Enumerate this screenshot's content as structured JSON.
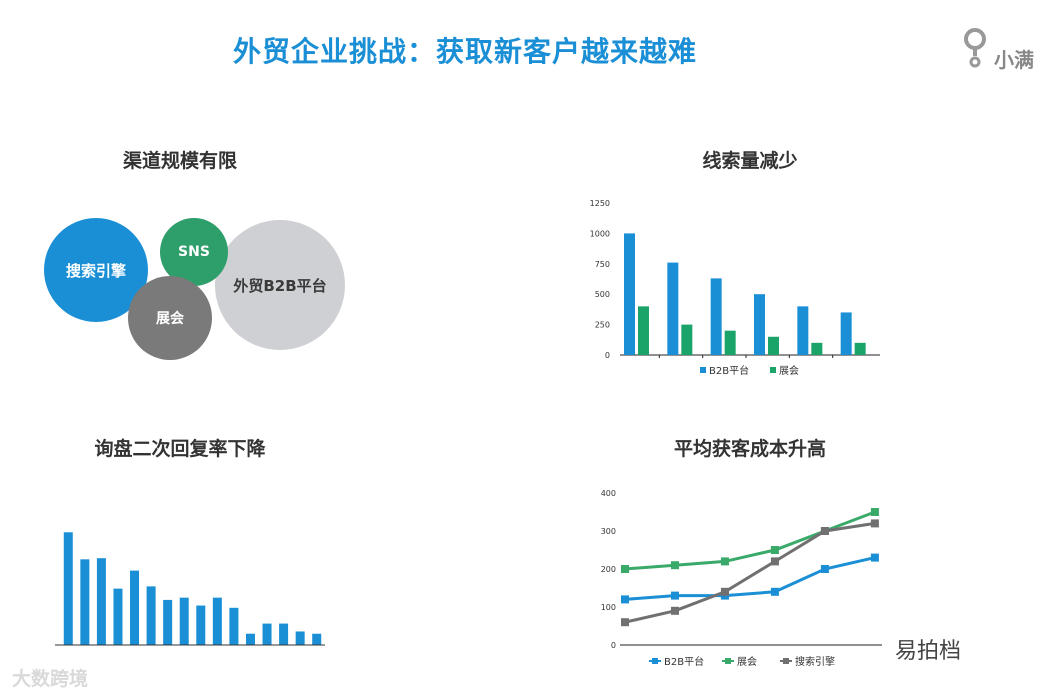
{
  "title": "外贸企业挑战：获取新客户越来越难",
  "logo": {
    "text": "小满"
  },
  "sections": {
    "channel": {
      "title": "渠道规模有限",
      "bubbles": {
        "search": "搜索引擎",
        "sns": "SNS",
        "fair": "展会",
        "b2b": "外贸B2B平台"
      }
    },
    "leads": {
      "title": "线索量减少"
    },
    "reply": {
      "title": "询盘二次回复率下降"
    },
    "cost": {
      "title": "平均获客成本升高"
    }
  },
  "colors": {
    "blue": "#1a8fd6",
    "green": "#2e9e6b",
    "gray": "#7a7a7a",
    "lightgray": "#cfd0d3",
    "bar_blue": "#1a8fd6",
    "bar_green": "#1aa46a"
  },
  "chart_data": [
    {
      "id": "leads",
      "type": "bar",
      "title": "线索量减少",
      "categories": [
        "",
        "",
        "",
        "",
        "",
        ""
      ],
      "series": [
        {
          "name": "B2B平台",
          "color": "#1a8fd6",
          "values": [
            1000,
            760,
            630,
            500,
            400,
            350
          ]
        },
        {
          "name": "展会",
          "color": "#1aa46a",
          "values": [
            400,
            250,
            200,
            150,
            100,
            100
          ]
        }
      ],
      "yticks": [
        0,
        250,
        500,
        750,
        1000,
        1250
      ],
      "ylim": [
        0,
        1250
      ],
      "legend": "bottom"
    },
    {
      "id": "reply",
      "type": "bar",
      "title": "询盘二次回复率下降",
      "series": [
        {
          "name": "",
          "color": "#1a8fd6",
          "values": [
            100,
            76,
            77,
            50,
            66,
            52,
            40,
            42,
            35,
            42,
            33,
            10,
            19,
            19,
            12,
            10
          ]
        }
      ],
      "ylim": [
        0,
        110
      ]
    },
    {
      "id": "cost",
      "type": "line",
      "title": "平均获客成本升高",
      "x": [
        1,
        2,
        3,
        4,
        5,
        6
      ],
      "series": [
        {
          "name": "B2B平台",
          "color": "#1a8fd6",
          "values": [
            120,
            130,
            130,
            140,
            200,
            230
          ]
        },
        {
          "name": "展会",
          "color": "#3aaa6a",
          "values": [
            200,
            210,
            220,
            250,
            300,
            350
          ]
        },
        {
          "name": "搜索引擎",
          "color": "#707070",
          "values": [
            60,
            90,
            140,
            220,
            300,
            320
          ]
        }
      ],
      "yticks": [
        0,
        100,
        200,
        300,
        400
      ],
      "ylim": [
        0,
        400
      ],
      "legend": "bottom"
    }
  ],
  "watermarks": {
    "left": "大数跨境",
    "right": "易拍档"
  }
}
